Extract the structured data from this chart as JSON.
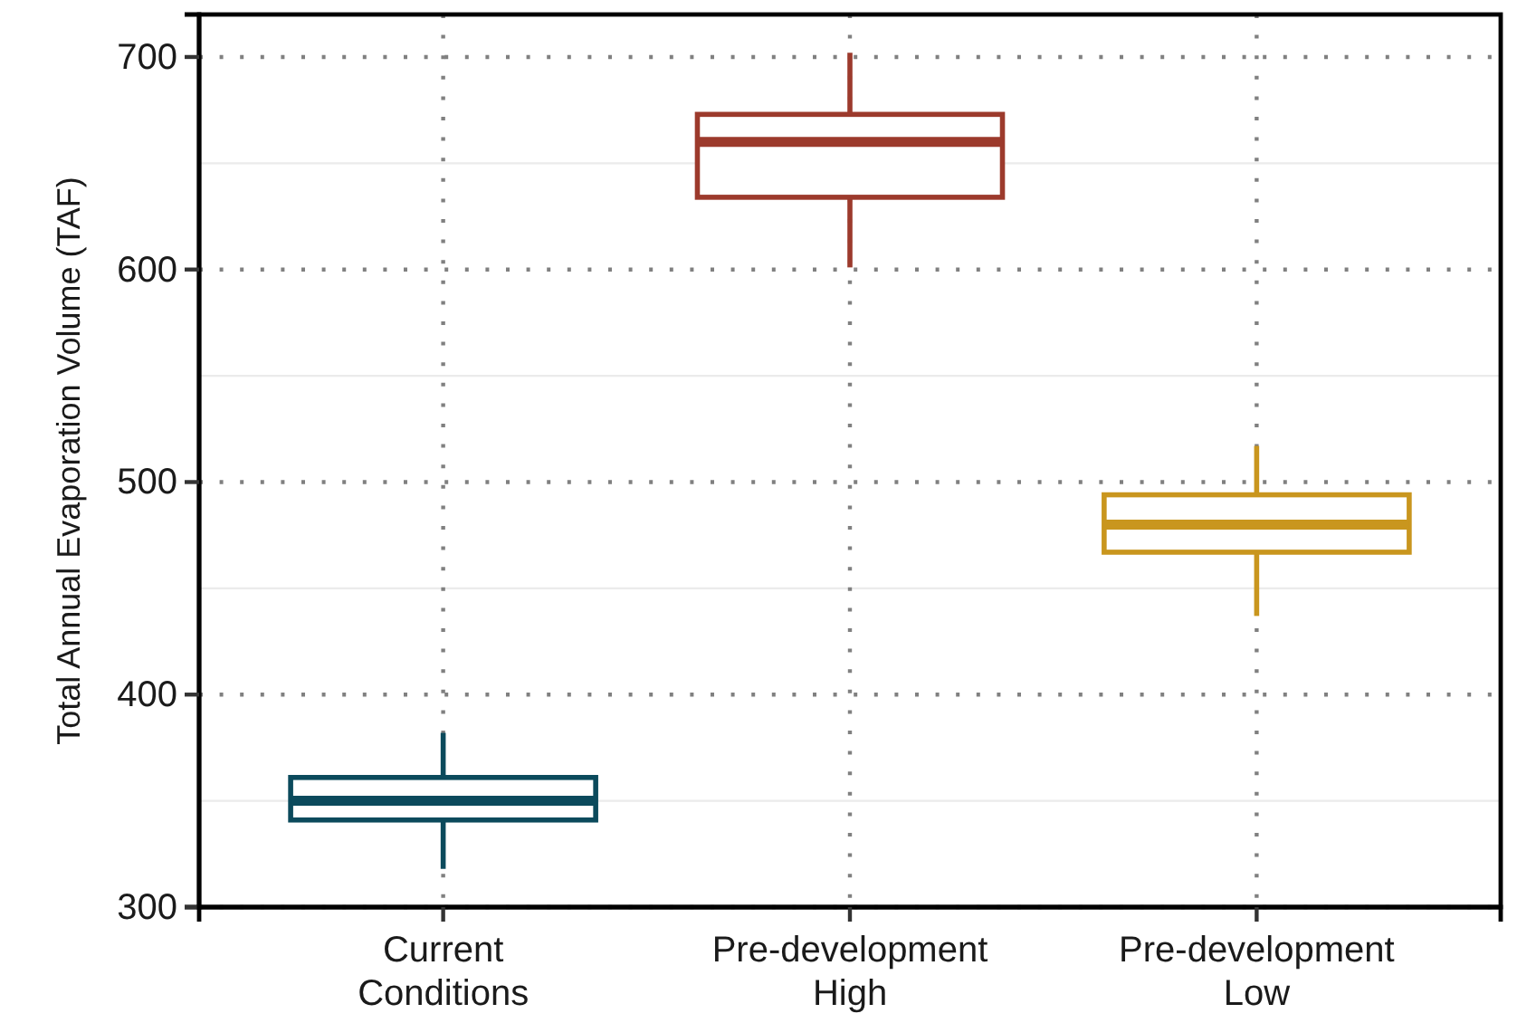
{
  "chart_data": {
    "type": "box",
    "categories": [
      "Current\nConditions",
      "Pre-development\nHigh",
      "Pre-development\nLow"
    ],
    "boxes": [
      {
        "low": 318,
        "q1": 341,
        "median": 350,
        "q3": 361,
        "high": 382
      },
      {
        "low": 601,
        "q1": 634,
        "median": 660,
        "q3": 673,
        "high": 702
      },
      {
        "low": 437,
        "q1": 467,
        "median": 480,
        "q3": 494,
        "high": 517
      }
    ],
    "colors": [
      "#0b4a5c",
      "#9c3a2c",
      "#c9961e"
    ],
    "ylabel": "Total Annual Evaporation Volume (TAF)",
    "ylim": [
      300,
      720
    ],
    "yticks": [
      300,
      400,
      500,
      600,
      700
    ],
    "grid": true
  }
}
